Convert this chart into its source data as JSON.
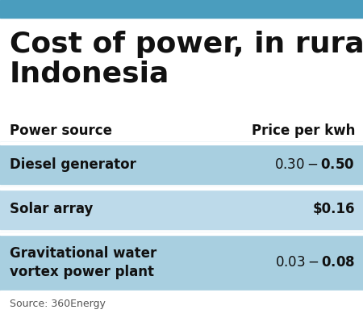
{
  "title_line1": "Cost of power, in rural",
  "title_line2": "Indonesia",
  "header_col1": "Power source",
  "header_col2": "Price per kwh",
  "rows": [
    {
      "source": "Diesel generator",
      "price": "$0.30-$0.50",
      "bg": "#a8cfe0"
    },
    {
      "source": "Solar array",
      "price": "$0.16",
      "bg": "#bddaea"
    },
    {
      "source": "Gravitational water\nvortex power plant",
      "price": "$0.03-$0.08",
      "bg": "#a8cfe0"
    }
  ],
  "source_text": "Source: 360Energy",
  "top_bar_color": "#4a9dbe",
  "background_color": "#ffffff",
  "title_fontsize": 26,
  "header_fontsize": 12,
  "row_fontsize": 12,
  "source_fontsize": 9
}
